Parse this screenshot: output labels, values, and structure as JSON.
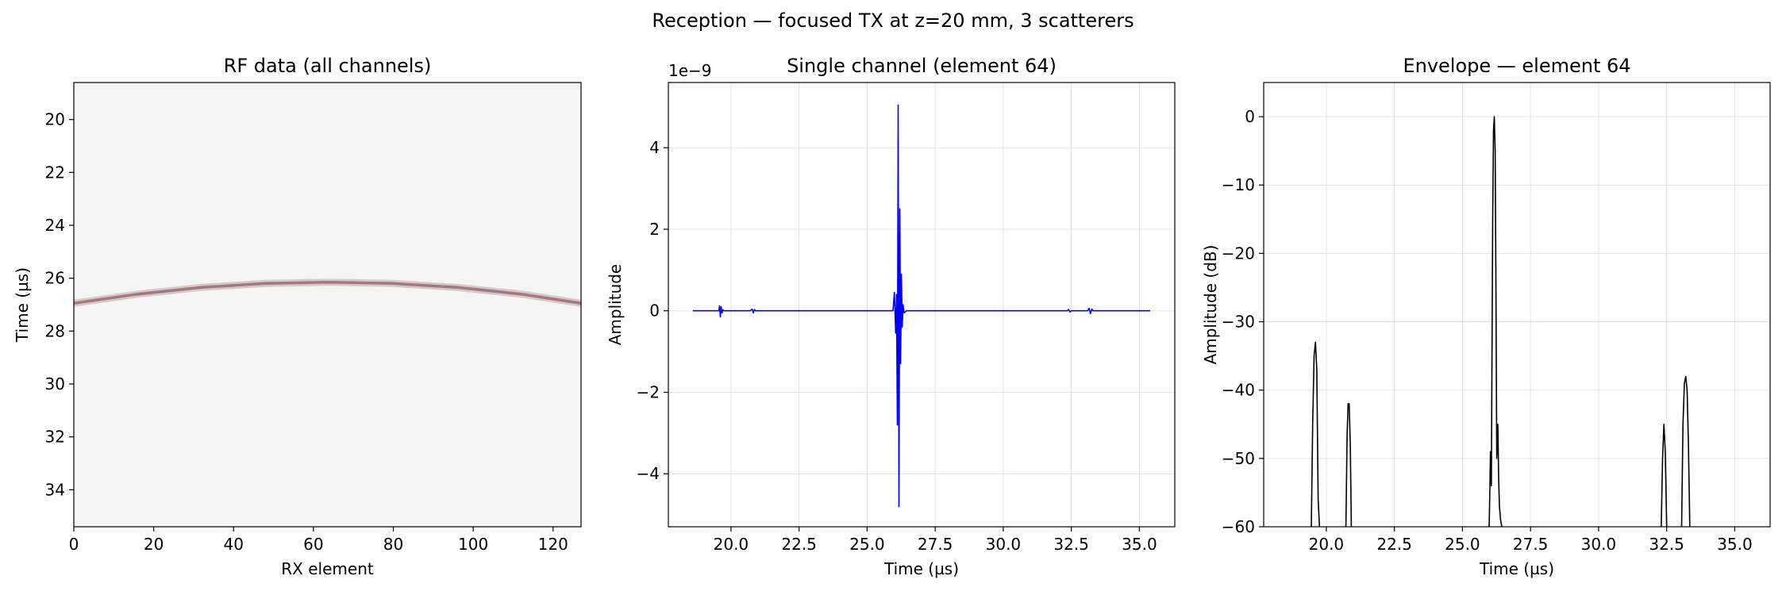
{
  "figure": {
    "suptitle": "Reception — focused TX at z=20 mm, 3 scatterers"
  },
  "chart_data": [
    {
      "type": "heatmap",
      "title": "RF data (all channels)",
      "xlabel": "RX element",
      "ylabel": "Time (µs)",
      "xlim": [
        0,
        127
      ],
      "ylim": [
        35.4,
        18.6
      ],
      "xticks": [
        0,
        20,
        40,
        60,
        80,
        100,
        120
      ],
      "yticks": [
        20,
        22,
        24,
        26,
        28,
        30,
        32,
        34
      ],
      "background_color": "#f5f5f5",
      "echo_color": "#a07880",
      "echo_arrival": {
        "element": [
          0,
          16,
          32,
          48,
          64,
          80,
          96,
          112,
          127
        ],
        "time_us": [
          26.95,
          26.6,
          26.35,
          26.2,
          26.15,
          26.2,
          26.35,
          26.6,
          26.95
        ]
      },
      "grid": false
    },
    {
      "type": "line",
      "title": "Single channel (element 64)",
      "xlabel": "Time (µs)",
      "ylabel": "Amplitude",
      "offset_label": "1e−9",
      "xlim": [
        17.7,
        36.3
      ],
      "ylim": [
        -5.3,
        5.6
      ],
      "xticks": [
        20.0,
        22.5,
        25.0,
        27.5,
        30.0,
        32.5,
        35.0
      ],
      "xtick_labels": [
        "20.0",
        "22.5",
        "25.0",
        "27.5",
        "30.0",
        "32.5",
        "35.0"
      ],
      "yticks": [
        -4,
        -2,
        0,
        2,
        4
      ],
      "ytick_labels": [
        "−4",
        "−2",
        "0",
        "2",
        "4"
      ],
      "grid": true,
      "line_color": "#0000ff",
      "series": [
        {
          "x": [
            18.6,
            19.55,
            19.58,
            19.61,
            19.64,
            19.67,
            19.7,
            19.75,
            20.7,
            20.78,
            20.82,
            20.86,
            20.9,
            25.95,
            26.0,
            26.05,
            26.08,
            26.11,
            26.14,
            26.17,
            26.2,
            26.23,
            26.26,
            26.29,
            26.32,
            26.36,
            26.45,
            32.35,
            32.4,
            32.45,
            32.5,
            33.1,
            33.15,
            33.2,
            33.25,
            33.3,
            35.4
          ],
          "y": [
            0,
            0,
            0.12,
            -0.15,
            0.1,
            -0.05,
            0.02,
            0,
            0,
            0.04,
            -0.05,
            0.03,
            0,
            0,
            0.45,
            -0.55,
            0.4,
            -2.8,
            5.05,
            -4.8,
            2.5,
            -1.3,
            0.9,
            -0.4,
            0.15,
            -0.05,
            0,
            0,
            0.03,
            -0.03,
            0,
            0,
            0.06,
            -0.07,
            0.04,
            0,
            0
          ]
        }
      ]
    },
    {
      "type": "line",
      "title": "Envelope — element 64",
      "xlabel": "Time (µs)",
      "ylabel": "Amplitude (dB)",
      "xlim": [
        17.7,
        36.3
      ],
      "ylim": [
        -60,
        5
      ],
      "xticks": [
        20.0,
        22.5,
        25.0,
        27.5,
        30.0,
        32.5,
        35.0
      ],
      "xtick_labels": [
        "20.0",
        "22.5",
        "25.0",
        "27.5",
        "30.0",
        "32.5",
        "35.0"
      ],
      "yticks": [
        -60,
        -50,
        -40,
        -30,
        -20,
        -10,
        0
      ],
      "ytick_labels": [
        "−60",
        "−50",
        "−40",
        "−30",
        "−20",
        "−10",
        "0"
      ],
      "grid": true,
      "line_color": "#000000",
      "series": [
        {
          "x": [
            19.45,
            19.5,
            19.55,
            19.6,
            19.65,
            19.7,
            19.75
          ],
          "y": [
            -60,
            -45,
            -35,
            -33,
            -37,
            -56,
            -60
          ]
        },
        {
          "x": [
            20.72,
            20.76,
            20.8,
            20.84,
            20.88,
            20.92
          ],
          "y": [
            -60,
            -47,
            -42,
            -42,
            -48,
            -60
          ]
        },
        {
          "x": [
            25.98,
            26.0,
            26.03,
            26.06,
            26.08,
            26.11,
            26.14,
            26.17,
            26.2,
            26.23,
            26.26,
            26.3,
            26.33,
            26.36,
            26.4,
            26.45
          ],
          "y": [
            -60,
            -56,
            -49,
            -54,
            -40,
            -15,
            -2,
            0,
            -5,
            -25,
            -50,
            -45,
            -53,
            -57,
            -59,
            -60
          ]
        },
        {
          "x": [
            32.3,
            32.35,
            32.4,
            32.45,
            32.5
          ],
          "y": [
            -60,
            -50,
            -45,
            -49,
            -60
          ]
        },
        {
          "x": [
            33.05,
            33.1,
            33.15,
            33.2,
            33.25,
            33.3,
            33.35
          ],
          "y": [
            -60,
            -45,
            -39,
            -38,
            -40,
            -48,
            -60
          ]
        }
      ]
    }
  ]
}
